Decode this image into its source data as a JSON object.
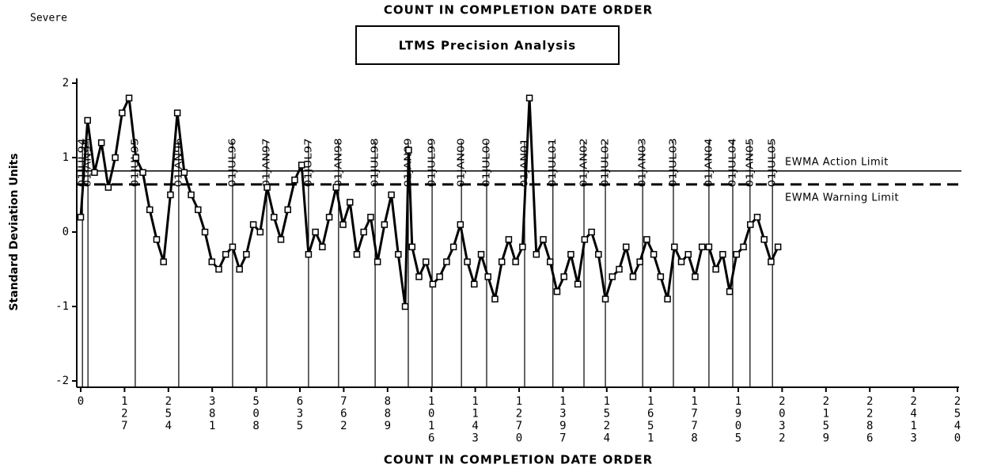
{
  "chart_data": {
    "type": "line",
    "title": "COUNT IN COMPLETION DATE ORDER",
    "subtitle": "Severe",
    "header_box": "LTMS Precision Analysis",
    "x_label": "COUNT IN COMPLETION DATE ORDER",
    "y_label": "Standard Deviation Units",
    "color": "#000000",
    "xlim": [
      0,
      2540
    ],
    "xticks": [
      0,
      127,
      254,
      381,
      508,
      635,
      762,
      889,
      1016,
      1143,
      1270,
      1397,
      1524,
      1651,
      1778,
      1905,
      2032,
      2159,
      2286,
      2413,
      2540
    ],
    "ylim": [
      -2,
      2
    ],
    "yticks": [
      -2,
      -1,
      0,
      1,
      2
    ],
    "reference_lines": [
      {
        "value": 0.82,
        "label": "EWMA Action Limit",
        "style": "solid"
      },
      {
        "value": 0.64,
        "label": "EWMA Warning Limit",
        "style": "dashed"
      }
    ],
    "date_lines": [
      {
        "value": 5,
        "label": "01JUL94"
      },
      {
        "value": 21,
        "label": "01JAN95"
      },
      {
        "value": 158,
        "label": "01JUL95"
      },
      {
        "value": 284,
        "label": "01JAN96"
      },
      {
        "value": 440,
        "label": "01JUL96"
      },
      {
        "value": 539,
        "label": "01JAN97"
      },
      {
        "value": 660,
        "label": "01JUL97"
      },
      {
        "value": 747,
        "label": "01JAN98"
      },
      {
        "value": 853,
        "label": "01JUL98"
      },
      {
        "value": 949,
        "label": "01JAN99"
      },
      {
        "value": 1018,
        "label": "01JUL99"
      },
      {
        "value": 1103,
        "label": "01JAN00"
      },
      {
        "value": 1176,
        "label": "01JUL00"
      },
      {
        "value": 1286,
        "label": "01JAN01"
      },
      {
        "value": 1368,
        "label": "01JUL01"
      },
      {
        "value": 1458,
        "label": "01JAN02"
      },
      {
        "value": 1520,
        "label": "01JUL02"
      },
      {
        "value": 1628,
        "label": "01JAN03"
      },
      {
        "value": 1717,
        "label": "01JUL03"
      },
      {
        "value": 1820,
        "label": "01JAN04"
      },
      {
        "value": 1889,
        "label": "01JUL04"
      },
      {
        "value": 1939,
        "label": "01JAN05"
      },
      {
        "value": 2004,
        "label": "01JUL05"
      }
    ],
    "x": [
      0,
      20,
      40,
      60,
      80,
      100,
      120,
      140,
      160,
      180,
      200,
      220,
      240,
      260,
      280,
      300,
      320,
      340,
      360,
      380,
      400,
      420,
      440,
      460,
      480,
      500,
      520,
      540,
      560,
      580,
      600,
      620,
      640,
      660,
      680,
      700,
      720,
      740,
      760,
      780,
      800,
      820,
      840,
      860,
      880,
      900,
      920,
      940,
      950,
      960,
      980,
      1000,
      1020,
      1040,
      1060,
      1080,
      1100,
      1120,
      1140,
      1160,
      1180,
      1200,
      1220,
      1240,
      1260,
      1280,
      1300,
      1320,
      1340,
      1360,
      1380,
      1400,
      1420,
      1440,
      1460,
      1480,
      1500,
      1520,
      1540,
      1560,
      1580,
      1600,
      1620,
      1640,
      1660,
      1680,
      1700,
      1720,
      1740,
      1760,
      1780,
      1800,
      1820,
      1840,
      1860,
      1880,
      1900,
      1920,
      1940,
      1960,
      1980,
      2000,
      2020
    ],
    "values": [
      0.2,
      1.5,
      0.8,
      1.2,
      0.6,
      1.0,
      1.6,
      1.8,
      1.0,
      0.8,
      0.3,
      -0.1,
      -0.4,
      0.5,
      1.6,
      0.8,
      0.5,
      0.3,
      0.0,
      -0.4,
      -0.5,
      -0.3,
      -0.2,
      -0.5,
      -0.3,
      0.1,
      0.0,
      0.6,
      0.2,
      -0.1,
      0.3,
      0.7,
      0.9,
      -0.3,
      0.0,
      -0.2,
      0.2,
      0.6,
      0.1,
      0.4,
      -0.3,
      0.0,
      0.2,
      -0.4,
      0.1,
      0.5,
      -0.3,
      -1.0,
      1.1,
      -0.2,
      -0.6,
      -0.4,
      -0.7,
      -0.6,
      -0.4,
      -0.2,
      0.1,
      -0.4,
      -0.7,
      -0.3,
      -0.6,
      -0.9,
      -0.4,
      -0.1,
      -0.4,
      -0.2,
      1.8,
      -0.3,
      -0.1,
      -0.4,
      -0.8,
      -0.6,
      -0.3,
      -0.7,
      -0.1,
      0.0,
      -0.3,
      -0.9,
      -0.6,
      -0.5,
      -0.2,
      -0.6,
      -0.4,
      -0.1,
      -0.3,
      -0.6,
      -0.9,
      -0.2,
      -0.4,
      -0.3,
      -0.6,
      -0.2,
      -0.2,
      -0.5,
      -0.3,
      -0.8,
      -0.3,
      -0.2,
      0.1,
      0.2,
      -0.1,
      -0.4,
      -0.2
    ]
  }
}
